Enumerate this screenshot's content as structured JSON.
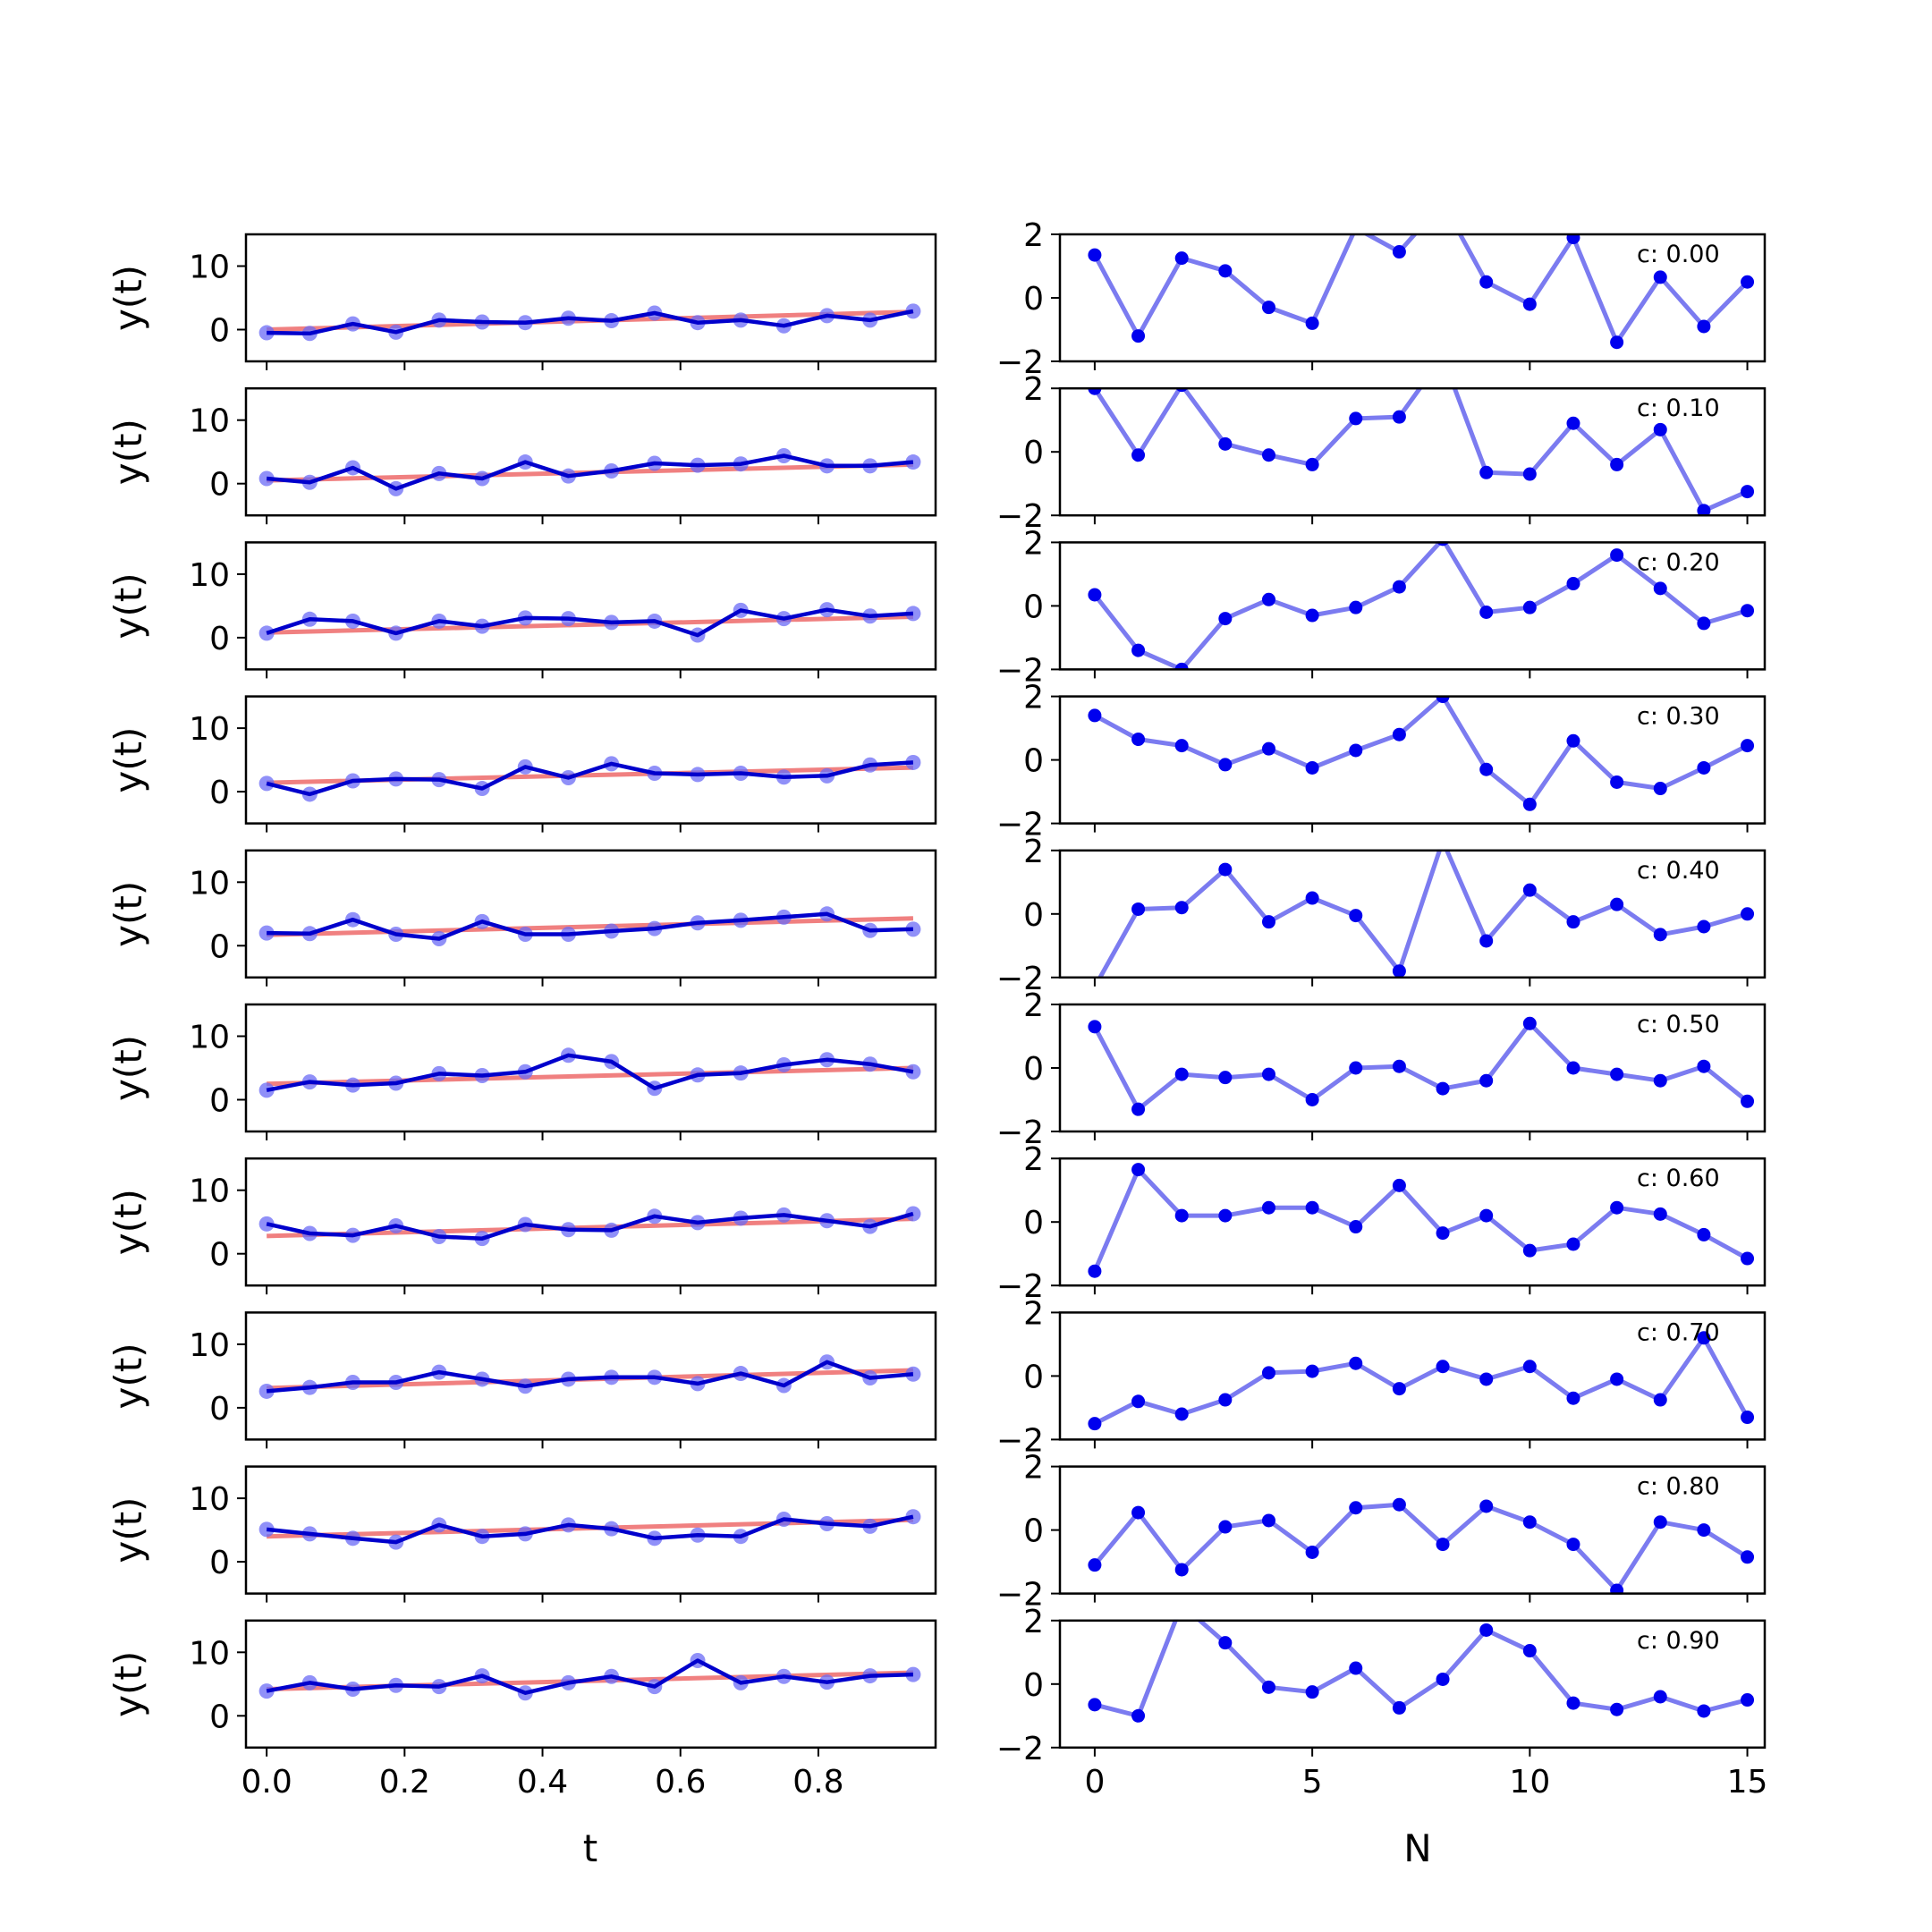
{
  "chart_data": {
    "type": "line",
    "layout": "10 rows x 2 columns of subplots",
    "left": {
      "xlabel": "t",
      "ylabel": "y(t)",
      "xlim": [
        -0.03,
        0.97
      ],
      "ylim": [
        -5,
        15
      ],
      "xticks": [
        "0.0",
        "0.2",
        "0.4",
        "0.6",
        "0.8"
      ],
      "yticks": [
        "0",
        "10"
      ],
      "t": [
        0,
        0.0625,
        0.125,
        0.1875,
        0.25,
        0.3125,
        0.375,
        0.4375,
        0.5,
        0.5625,
        0.625,
        0.6875,
        0.75,
        0.8125,
        0.875,
        0.9375
      ],
      "fit_color": "#f08080",
      "data_color": "#0000cc",
      "rows": [
        {
          "y": [
            -0.5,
            -0.6,
            0.9,
            -0.4,
            1.5,
            1.2,
            1.1,
            1.8,
            1.4,
            2.6,
            1.1,
            1.5,
            0.6,
            2.2,
            1.5,
            2.9
          ],
          "fit": [
            0.0,
            2.8
          ]
        },
        {
          "y": [
            0.8,
            0.2,
            2.5,
            -0.8,
            1.6,
            0.8,
            3.4,
            1.2,
            2.0,
            3.2,
            2.9,
            3.1,
            4.4,
            2.8,
            2.8,
            3.4
          ],
          "fit": [
            0.5,
            3.0
          ]
        },
        {
          "y": [
            0.7,
            2.9,
            2.6,
            0.7,
            2.6,
            1.8,
            3.1,
            3.0,
            2.4,
            2.6,
            0.4,
            4.3,
            3.0,
            4.4,
            3.4,
            3.8
          ],
          "fit": [
            0.8,
            3.3
          ]
        },
        {
          "y": [
            1.3,
            -0.4,
            1.7,
            2.0,
            1.9,
            0.5,
            3.9,
            2.2,
            4.4,
            2.9,
            2.7,
            2.9,
            2.3,
            2.5,
            4.2,
            4.6
          ],
          "fit": [
            1.4,
            3.8
          ]
        },
        {
          "y": [
            2.0,
            1.9,
            4.1,
            1.8,
            1.1,
            3.8,
            1.8,
            1.8,
            2.3,
            2.7,
            3.6,
            4.0,
            4.5,
            5.0,
            2.4,
            2.6
          ],
          "fit": [
            1.7,
            4.3
          ]
        },
        {
          "y": [
            1.5,
            2.8,
            2.3,
            2.6,
            4.1,
            3.8,
            4.4,
            7.0,
            6.0,
            1.8,
            3.9,
            4.2,
            5.5,
            6.3,
            5.6,
            4.4
          ],
          "fit": [
            2.5,
            5.0
          ]
        },
        {
          "y": [
            4.7,
            3.2,
            2.9,
            4.4,
            2.7,
            2.4,
            4.6,
            3.8,
            3.7,
            5.9,
            4.9,
            5.6,
            6.1,
            5.2,
            4.3,
            6.3
          ],
          "fit": [
            2.8,
            5.5
          ]
        },
        {
          "y": [
            2.6,
            3.2,
            4.0,
            4.0,
            5.6,
            4.5,
            3.4,
            4.5,
            4.8,
            4.8,
            3.8,
            5.4,
            3.5,
            7.2,
            4.7,
            5.3
          ],
          "fit": [
            3.1,
            5.9
          ]
        },
        {
          "y": [
            5.1,
            4.4,
            3.7,
            3.1,
            5.8,
            4.0,
            4.4,
            5.8,
            5.2,
            3.7,
            4.2,
            4.0,
            6.7,
            6.0,
            5.6,
            7.1
          ],
          "fit": [
            4.0,
            6.6
          ]
        },
        {
          "y": [
            3.9,
            5.2,
            4.2,
            4.8,
            4.6,
            6.3,
            3.6,
            5.2,
            6.2,
            4.6,
            8.7,
            5.2,
            6.2,
            5.3,
            6.3,
            6.5
          ],
          "fit": [
            4.2,
            6.8
          ]
        }
      ]
    },
    "right": {
      "xlabel": "N",
      "xlim": [
        -0.8,
        15.4
      ],
      "ylim": [
        -2,
        2
      ],
      "xticks": [
        "0",
        "5",
        "10",
        "15"
      ],
      "yticks": [
        "2",
        "0",
        "−2"
      ],
      "x": [
        0,
        1,
        2,
        3,
        4,
        5,
        6,
        7,
        8,
        9,
        10,
        11,
        12,
        13,
        14,
        15
      ],
      "line_color": "#7b7bf0",
      "dot_color": "#0000ee",
      "rows": [
        {
          "label": "c: 0.00",
          "y": [
            1.35,
            -1.2,
            1.25,
            0.85,
            -0.3,
            -0.8,
            2.2,
            1.45,
            3.0,
            0.5,
            -0.2,
            1.9,
            -1.4,
            0.65,
            -0.9,
            0.5
          ]
        },
        {
          "label": "c: 0.10",
          "y": [
            2.0,
            -0.1,
            2.1,
            0.25,
            -0.1,
            -0.4,
            1.05,
            1.1,
            3.0,
            -0.65,
            -0.7,
            0.9,
            -0.4,
            0.7,
            -1.85,
            -1.25
          ]
        },
        {
          "label": "c: 0.20",
          "y": [
            0.35,
            -1.4,
            -2.0,
            -0.4,
            0.2,
            -0.3,
            -0.05,
            0.6,
            2.1,
            -0.2,
            -0.05,
            0.7,
            1.6,
            0.55,
            -0.55,
            -0.15
          ]
        },
        {
          "label": "c: 0.30",
          "y": [
            1.4,
            0.65,
            0.45,
            -0.15,
            0.35,
            -0.25,
            0.3,
            0.8,
            2.0,
            -0.3,
            -1.4,
            0.6,
            -0.7,
            -0.9,
            -0.25,
            0.45
          ]
        },
        {
          "label": "c: 0.40",
          "y": [
            -2.3,
            0.15,
            0.2,
            1.4,
            -0.25,
            0.5,
            -0.05,
            -1.8,
            2.3,
            -0.85,
            0.75,
            -0.25,
            0.3,
            -0.65,
            -0.4,
            0.0
          ]
        },
        {
          "label": "c: 0.50",
          "y": [
            1.3,
            -1.3,
            -0.2,
            -0.3,
            -0.2,
            -1.0,
            0.0,
            0.05,
            -0.65,
            -0.4,
            1.4,
            0.0,
            -0.2,
            -0.4,
            0.05,
            -1.05
          ]
        },
        {
          "label": "c: 0.60",
          "y": [
            -1.55,
            1.65,
            0.2,
            0.2,
            0.45,
            0.45,
            -0.15,
            1.15,
            -0.35,
            0.2,
            -0.9,
            -0.7,
            0.45,
            0.25,
            -0.4,
            -1.15
          ]
        },
        {
          "label": "c: 0.70",
          "y": [
            -1.5,
            -0.8,
            -1.2,
            -0.75,
            0.1,
            0.15,
            0.4,
            -0.4,
            0.3,
            -0.1,
            0.3,
            -0.7,
            -0.1,
            -0.75,
            1.2,
            -1.3
          ]
        },
        {
          "label": "c: 0.80",
          "y": [
            -1.1,
            0.55,
            -1.25,
            0.1,
            0.3,
            -0.7,
            0.7,
            0.8,
            -0.45,
            0.75,
            0.25,
            -0.45,
            -1.9,
            0.25,
            0.0,
            -0.85
          ]
        },
        {
          "label": "c: 0.90",
          "y": [
            -0.65,
            -1.0,
            2.5,
            1.3,
            -0.1,
            -0.25,
            0.5,
            -0.75,
            0.15,
            1.7,
            1.05,
            -0.6,
            -0.8,
            -0.4,
            -0.85,
            -0.5
          ]
        }
      ]
    }
  }
}
